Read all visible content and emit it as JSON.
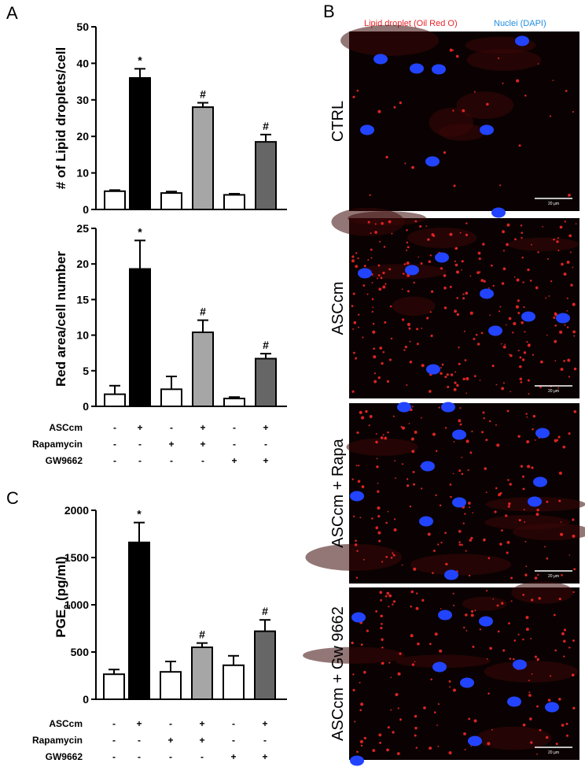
{
  "panels": {
    "a": "A",
    "b": "B",
    "c": "C"
  },
  "colors": {
    "bars": [
      "#ffffff",
      "#000000",
      "#b0b0b0",
      "#b0b0b0",
      "#ffffff",
      "#666666"
    ],
    "bars_a": [
      "#ffffff",
      "#000000",
      "#ffffff",
      "#a6a6a6",
      "#ffffff",
      "#666666"
    ],
    "red_stain": "#ff2a2a",
    "nuclei": "#2244ff",
    "legend_red": "#e8262a",
    "legend_blue": "#1f8de0"
  },
  "treatment_table": {
    "rows": [
      {
        "label": "ASCcm",
        "values": [
          "-",
          "+",
          "-",
          "+",
          "-",
          "+"
        ]
      },
      {
        "label": "Rapamycin",
        "values": [
          "-",
          "-",
          "+",
          "+",
          "-",
          "-"
        ]
      },
      {
        "label": "GW9662",
        "values": [
          "-",
          "-",
          "-",
          "-",
          "+",
          "+"
        ]
      }
    ]
  },
  "chart_data": [
    {
      "type": "bar",
      "panel": "A",
      "ylabel": "# of Lipid droplets/cell",
      "ylim": [
        0,
        50
      ],
      "yticks": [
        "0",
        "10",
        "20",
        "30",
        "40",
        "50"
      ],
      "values": [
        5,
        36,
        4.5,
        28,
        4,
        18.5
      ],
      "errors": [
        0.3,
        2.5,
        0.4,
        1.2,
        0.3,
        2
      ],
      "annotations": [
        "",
        "*",
        "",
        "#",
        "",
        "#"
      ]
    },
    {
      "type": "bar",
      "panel": "A",
      "ylabel": "Red area/cell number",
      "ylim": [
        0,
        25
      ],
      "yticks": [
        "0",
        "5",
        "10",
        "15",
        "20",
        "25"
      ],
      "values": [
        1.7,
        19.3,
        2.4,
        10.4,
        1.1,
        6.7
      ],
      "errors": [
        1.2,
        4.0,
        1.8,
        1.7,
        0.2,
        0.7
      ],
      "annotations": [
        "",
        "*",
        "",
        "#",
        "",
        "#"
      ]
    },
    {
      "type": "bar",
      "panel": "C",
      "ylabel_main": "PGE",
      "ylabel_sub": "2",
      "ylabel_unit": " (pg/ml)",
      "ylim": [
        0,
        2000
      ],
      "yticks": [
        "0",
        "500",
        "1000",
        "1500",
        "2000"
      ],
      "values": [
        265,
        1660,
        290,
        550,
        360,
        720
      ],
      "errors": [
        50,
        210,
        110,
        45,
        100,
        120
      ],
      "annotations": [
        "",
        "*",
        "",
        "#",
        "",
        "#"
      ]
    }
  ],
  "micrographs": {
    "legend_red": "Lipid droplet  (Oil Red O)",
    "legend_blue": "Nuclei (DAPI)",
    "scale_label": "20 μm",
    "conditions": [
      "CTRL",
      "ASCcm",
      "ASCcm + Rapa",
      "ASCcm + Gw 9662"
    ]
  }
}
